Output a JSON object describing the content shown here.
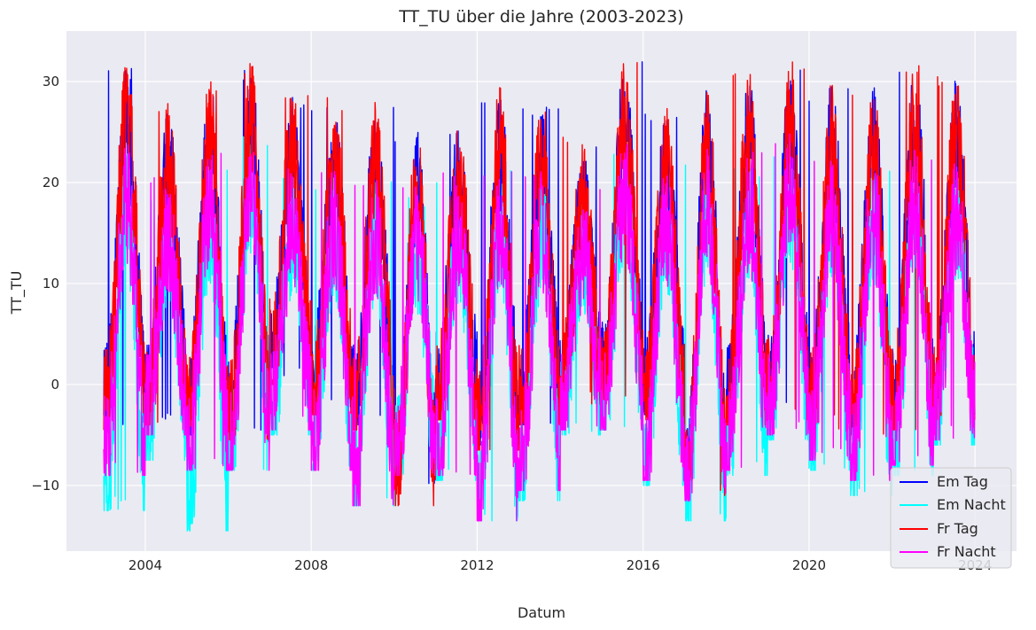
{
  "chart_data": {
    "type": "line",
    "title": "TT_TU über die Jahre (2003-2023)",
    "xlabel": "Datum",
    "ylabel": "TT_TU",
    "xlim": [
      2002.1,
      2025.0
    ],
    "ylim": [
      -16.5,
      35.0
    ],
    "x_ticks": [
      {
        "value": 2004,
        "label": "2004"
      },
      {
        "value": 2008,
        "label": "2008"
      },
      {
        "value": 2012,
        "label": "2012"
      },
      {
        "value": 2016,
        "label": "2016"
      },
      {
        "value": 2020,
        "label": "2020"
      },
      {
        "value": 2024,
        "label": "2024"
      }
    ],
    "y_ticks": [
      {
        "value": -10,
        "label": "−10"
      },
      {
        "value": 0,
        "label": "0"
      },
      {
        "value": 10,
        "label": "10"
      },
      {
        "value": 20,
        "label": "20"
      },
      {
        "value": 30,
        "label": "30"
      }
    ],
    "grid": true,
    "background": "#eaeaf2",
    "legend_position": "bottom-right",
    "years": [
      2003,
      2004,
      2005,
      2006,
      2007,
      2008,
      2009,
      2010,
      2011,
      2012,
      2013,
      2014,
      2015,
      2016,
      2017,
      2018,
      2019,
      2020,
      2021,
      2022,
      2023
    ],
    "series": [
      {
        "name": "Em Tag",
        "color": "#0000ff",
        "summer_max": [
          31.5,
          27.5,
          30.0,
          31.5,
          28.5,
          28.0,
          27.5,
          25.5,
          26.0,
          29.0,
          27.5,
          24.0,
          32.0,
          27.0,
          30.5,
          30.5,
          31.5,
          29.5,
          29.5,
          31.5,
          30.5
        ],
        "winter_min": [
          -4.0,
          -3.5,
          -5.0,
          -5.0,
          0.5,
          -2.5,
          -4.0,
          -10.0,
          -3.0,
          -6.0,
          -4.0,
          -1.5,
          -1.0,
          -3.0,
          -10.5,
          -3.5,
          -3.0,
          -4.0,
          -5.0,
          -4.0,
          -3.0
        ]
      },
      {
        "name": "Em Nacht",
        "color": "#00ffff",
        "summer_max": [
          23.0,
          19.5,
          22.0,
          25.0,
          21.0,
          20.5,
          20.5,
          19.0,
          20.0,
          21.5,
          21.0,
          19.0,
          24.0,
          21.5,
          22.5,
          22.0,
          24.0,
          22.0,
          22.5,
          23.0,
          22.0
        ],
        "winter_min": [
          -12.5,
          -7.5,
          -14.5,
          -8.5,
          -5.0,
          -8.5,
          -12.0,
          -9.0,
          -9.5,
          -13.5,
          -11.5,
          -5.0,
          -4.5,
          -10.0,
          -13.5,
          -9.0,
          -5.5,
          -8.5,
          -11.0,
          -9.0,
          -6.0
        ]
      },
      {
        "name": "Fr Tag",
        "color": "#ff0000",
        "summer_max": [
          32.5,
          28.0,
          30.5,
          32.0,
          29.0,
          28.5,
          28.0,
          26.0,
          26.5,
          29.5,
          28.0,
          24.5,
          32.5,
          27.5,
          30.0,
          31.0,
          32.0,
          30.0,
          30.0,
          32.0,
          31.0
        ],
        "winter_min": [
          -4.5,
          -4.0,
          -5.0,
          -5.5,
          0.0,
          -3.0,
          -4.5,
          -12.0,
          -3.5,
          -6.5,
          -4.0,
          -2.0,
          -1.5,
          -3.5,
          -11.0,
          -4.0,
          -3.5,
          -4.5,
          -5.5,
          -4.5,
          -3.5
        ]
      },
      {
        "name": "Fr Nacht",
        "color": "#ff00ff",
        "summer_max": [
          24.0,
          20.5,
          23.5,
          25.5,
          22.0,
          21.5,
          21.0,
          20.0,
          21.0,
          22.0,
          21.5,
          19.5,
          25.0,
          22.0,
          23.5,
          23.0,
          25.0,
          22.5,
          23.0,
          23.5,
          22.5
        ],
        "winter_min": [
          -9.0,
          -5.0,
          -8.5,
          -8.5,
          -4.5,
          -8.5,
          -12.0,
          -9.0,
          -9.0,
          -13.5,
          -10.5,
          -4.5,
          -4.5,
          -9.5,
          -11.5,
          -8.5,
          -5.0,
          -7.5,
          -9.5,
          -8.0,
          -5.5
        ]
      }
    ]
  }
}
